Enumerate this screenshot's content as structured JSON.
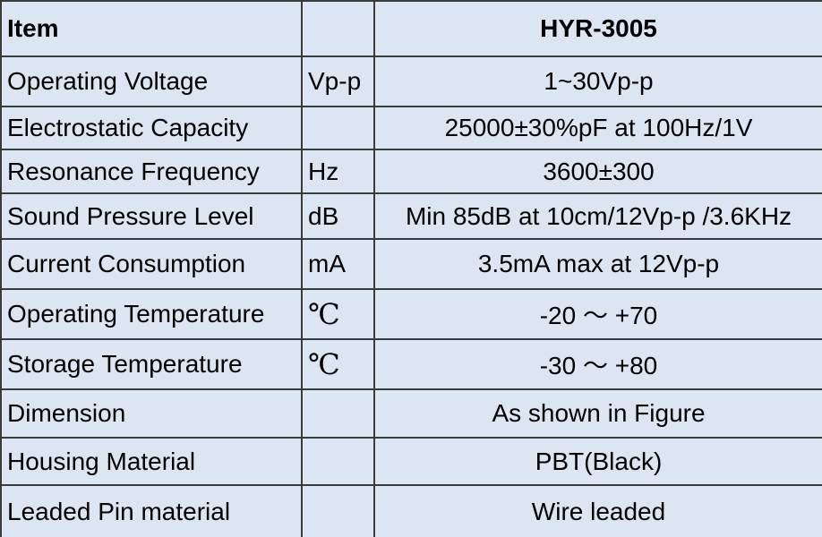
{
  "table": {
    "header": {
      "item": "Item",
      "model": "HYR-3005"
    },
    "rows": [
      {
        "item": "Operating Voltage",
        "unit": "Vp-p",
        "value": "1~30Vp-p"
      },
      {
        "item": "Electrostatic Capacity",
        "value": "25000±30%pF at 100Hz/1V"
      },
      {
        "item": "Resonance Frequency",
        "unit": "Hz",
        "value": "3600±300"
      },
      {
        "item": "Sound Pressure Level",
        "unit": "dB",
        "value": "Min 85dB at 10cm/12Vp-p /3.6KHz"
      },
      {
        "item": "Current Consumption",
        "unit": "mA",
        "value": "3.5mA max at 12Vp-p"
      },
      {
        "item": "Operating Temperature",
        "unit": "℃",
        "value": "-20 ～ +70"
      },
      {
        "item": "Storage Temperature",
        "unit": "℃",
        "value": "-30 ～ +80"
      },
      {
        "item": "Dimension",
        "value": "As shown in Figure"
      },
      {
        "item": "Housing Material",
        "value": "PBT(Black)"
      },
      {
        "item": "Leaded Pin material",
        "value": "Wire leaded"
      }
    ]
  }
}
